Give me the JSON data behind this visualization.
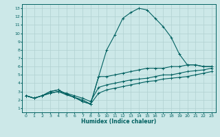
{
  "xlabel": "Humidex (Indice chaleur)",
  "ylabel": "",
  "xlim": [
    -0.5,
    23.5
  ],
  "ylim": [
    0.5,
    13.5
  ],
  "xticks": [
    0,
    1,
    2,
    3,
    4,
    5,
    6,
    7,
    8,
    9,
    10,
    11,
    12,
    13,
    14,
    15,
    16,
    17,
    18,
    19,
    20,
    21,
    22,
    23
  ],
  "yticks": [
    1,
    2,
    3,
    4,
    5,
    6,
    7,
    8,
    9,
    10,
    11,
    12,
    13
  ],
  "background_color": "#cce8e8",
  "grid_color": "#b0d0d0",
  "line_color": "#006060",
  "lines": [
    {
      "x": [
        0,
        1,
        2,
        3,
        4,
        5,
        6,
        7,
        8,
        9,
        10,
        11,
        12,
        13,
        14,
        15,
        16,
        17,
        18,
        19,
        20,
        21,
        22,
        23
      ],
      "y": [
        2.5,
        2.2,
        2.5,
        3.0,
        3.2,
        2.7,
        2.3,
        1.8,
        1.5,
        4.8,
        8.0,
        9.8,
        11.8,
        12.5,
        13.0,
        12.8,
        11.8,
        10.8,
        9.5,
        7.5,
        6.2,
        6.2,
        6.0,
        6.0
      ]
    },
    {
      "x": [
        0,
        1,
        2,
        3,
        4,
        5,
        6,
        7,
        8,
        9,
        10,
        11,
        12,
        13,
        14,
        15,
        16,
        17,
        18,
        19,
        20,
        21,
        22,
        23
      ],
      "y": [
        2.5,
        2.2,
        2.5,
        3.0,
        3.2,
        2.7,
        2.3,
        1.8,
        1.5,
        4.8,
        4.8,
        5.0,
        5.2,
        5.4,
        5.6,
        5.8,
        5.8,
        5.8,
        6.0,
        6.0,
        6.2,
        6.2,
        6.0,
        6.0
      ]
    },
    {
      "x": [
        0,
        1,
        2,
        3,
        4,
        5,
        6,
        7,
        8,
        9,
        10,
        11,
        12,
        13,
        14,
        15,
        16,
        17,
        18,
        19,
        20,
        21,
        22,
        23
      ],
      "y": [
        2.5,
        2.2,
        2.5,
        2.8,
        3.0,
        2.8,
        2.5,
        2.2,
        1.8,
        3.5,
        3.8,
        4.0,
        4.2,
        4.4,
        4.5,
        4.6,
        4.8,
        5.0,
        5.0,
        5.2,
        5.4,
        5.5,
        5.6,
        5.8
      ]
    },
    {
      "x": [
        0,
        1,
        2,
        3,
        4,
        5,
        6,
        7,
        8,
        9,
        10,
        11,
        12,
        13,
        14,
        15,
        16,
        17,
        18,
        19,
        20,
        21,
        22,
        23
      ],
      "y": [
        2.5,
        2.2,
        2.5,
        2.8,
        3.0,
        2.6,
        2.3,
        2.0,
        1.5,
        2.8,
        3.2,
        3.4,
        3.6,
        3.8,
        4.0,
        4.2,
        4.3,
        4.5,
        4.6,
        4.7,
        4.8,
        5.0,
        5.2,
        5.4
      ]
    }
  ]
}
